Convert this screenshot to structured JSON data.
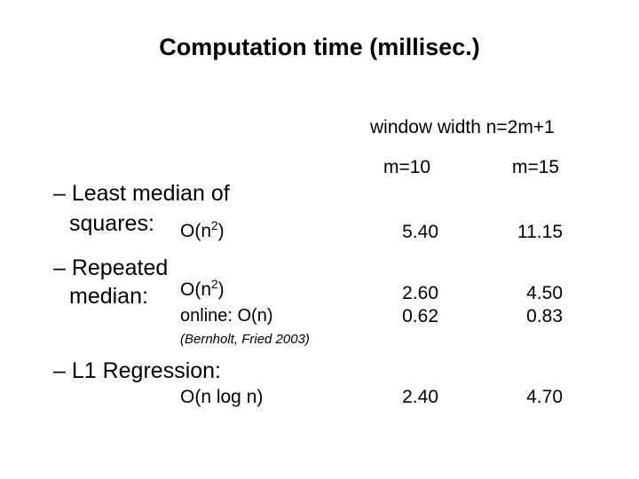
{
  "title": "Computation time (millisec.)",
  "window_header": "window width  n=2m+1",
  "columns": [
    "m=10",
    "m=15"
  ],
  "rows": [
    {
      "label_line1": "– Least median of",
      "label_line2": "squares:",
      "complexity_base": "O(n",
      "complexity_exp": "2",
      "complexity_close": ")",
      "values": [
        "5.40",
        "11.15"
      ]
    },
    {
      "label_line1": "– Repeated",
      "label_line2": "median:",
      "complexity_base": "O(n",
      "complexity_exp": "2",
      "complexity_close": ")",
      "online_label": "online: O(n)",
      "citation": "(Bernholt, Fried 2003)",
      "values": [
        "2.60",
        "4.50"
      ],
      "online_values": [
        "0.62",
        "0.83"
      ]
    },
    {
      "label_line1": "– L1 Regression:",
      "complexity": "O(n log n)",
      "values": [
        "2.40",
        "4.70"
      ]
    }
  ]
}
